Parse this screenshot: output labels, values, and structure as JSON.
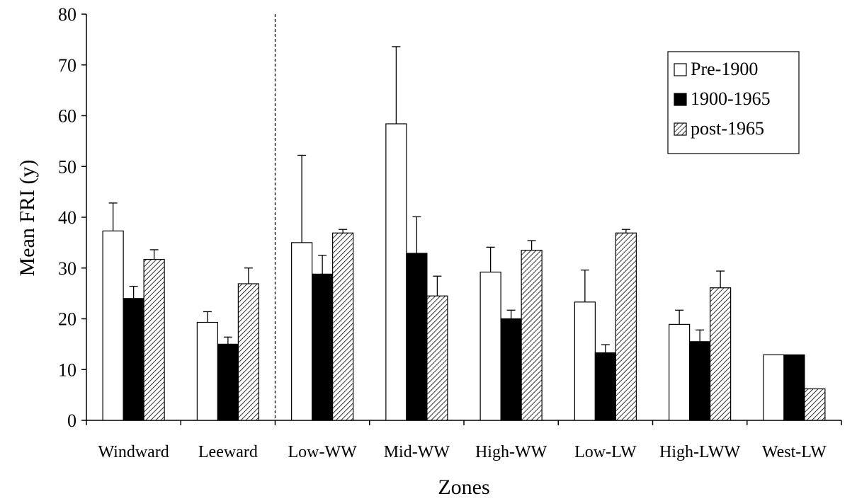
{
  "chart_data": {
    "type": "bar",
    "title": "",
    "xlabel": "Zones",
    "ylabel": "Mean FRI (y)",
    "ylim": [
      0,
      80
    ],
    "yticks": [
      0,
      10,
      20,
      30,
      40,
      50,
      60,
      70,
      80
    ],
    "categories": [
      "Windward",
      "Leeward",
      "Low-WW",
      "Mid-WW",
      "High-WW",
      "Low-LW",
      "High-LWW",
      "West-LW"
    ],
    "series": [
      {
        "name": "Pre-1900",
        "pattern": "white",
        "values": [
          37.3,
          19.3,
          35.0,
          58.4,
          29.2,
          23.3,
          18.9,
          12.9
        ],
        "errors": [
          5.5,
          2.1,
          17.2,
          15.2,
          4.9,
          6.3,
          2.8,
          null
        ]
      },
      {
        "name": "1900-1965",
        "pattern": "black",
        "values": [
          24.0,
          15.0,
          28.8,
          32.9,
          20.0,
          13.3,
          15.5,
          12.9
        ],
        "errors": [
          2.4,
          1.4,
          3.7,
          7.2,
          1.7,
          1.6,
          2.3,
          null
        ]
      },
      {
        "name": "post-1965",
        "pattern": "hatched",
        "values": [
          31.7,
          26.9,
          36.9,
          24.5,
          33.5,
          36.9,
          26.1,
          6.2
        ],
        "errors": [
          1.9,
          3.1,
          0.7,
          3.9,
          1.9,
          0.7,
          3.3,
          null
        ]
      }
    ],
    "legend_position": "top-right",
    "separator_after_category": "Leeward",
    "colors": {
      "axis": "#000000",
      "bar_stroke": "#000000",
      "pre": "#ffffff",
      "mid": "#000000"
    }
  }
}
